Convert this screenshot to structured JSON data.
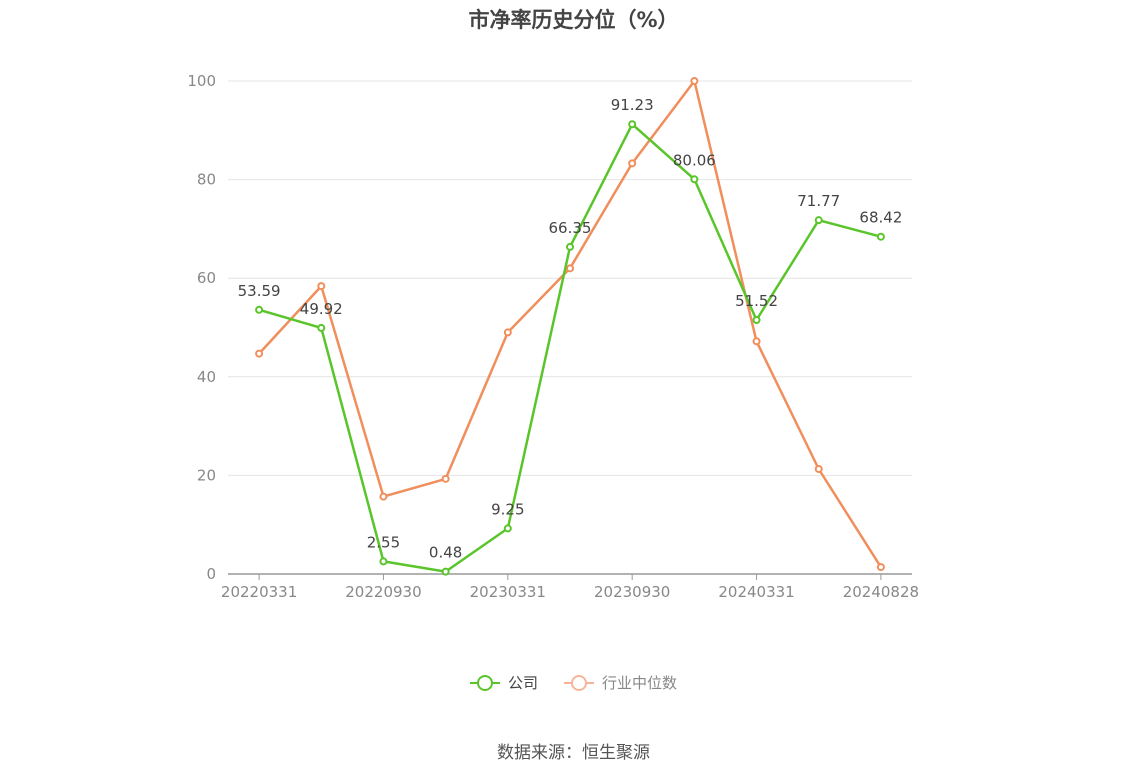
{
  "colors": {
    "company": "#5ac52b",
    "industry": "#f08e5c",
    "industry_legend": "#f6b59a",
    "grid": "#e4e4e4",
    "axis": "#999999"
  },
  "source": "数据来源：恒生聚源",
  "chart_data": {
    "type": "line",
    "title": "市净率历史分位（%）",
    "xlabel": "",
    "ylabel": "",
    "ylim": [
      0,
      100
    ],
    "yticks": [
      "0",
      "20",
      "40",
      "60",
      "80",
      "100"
    ],
    "x_tick_labels": [
      "20220331",
      "20220930",
      "20230331",
      "20230930",
      "20240331",
      "20240828"
    ],
    "x_tick_label_indices": [
      0,
      2,
      4,
      6,
      8,
      10
    ],
    "grid": true,
    "legend_position": "bottom",
    "series": [
      {
        "name": "公司",
        "values": [
          53.59,
          49.92,
          2.55,
          0.48,
          9.25,
          66.35,
          91.23,
          80.06,
          51.52,
          71.77,
          68.42
        ],
        "labels": [
          "53.59",
          "49.92",
          "2.55",
          "0.48",
          "9.25",
          "66.35",
          "91.23",
          "80.06",
          "51.52",
          "71.77",
          "68.42"
        ]
      },
      {
        "name": "行业中位数",
        "values": [
          44.7,
          58.4,
          15.7,
          19.3,
          49.0,
          62.0,
          83.3,
          100,
          47.2,
          21.3,
          1.4
        ]
      }
    ]
  }
}
